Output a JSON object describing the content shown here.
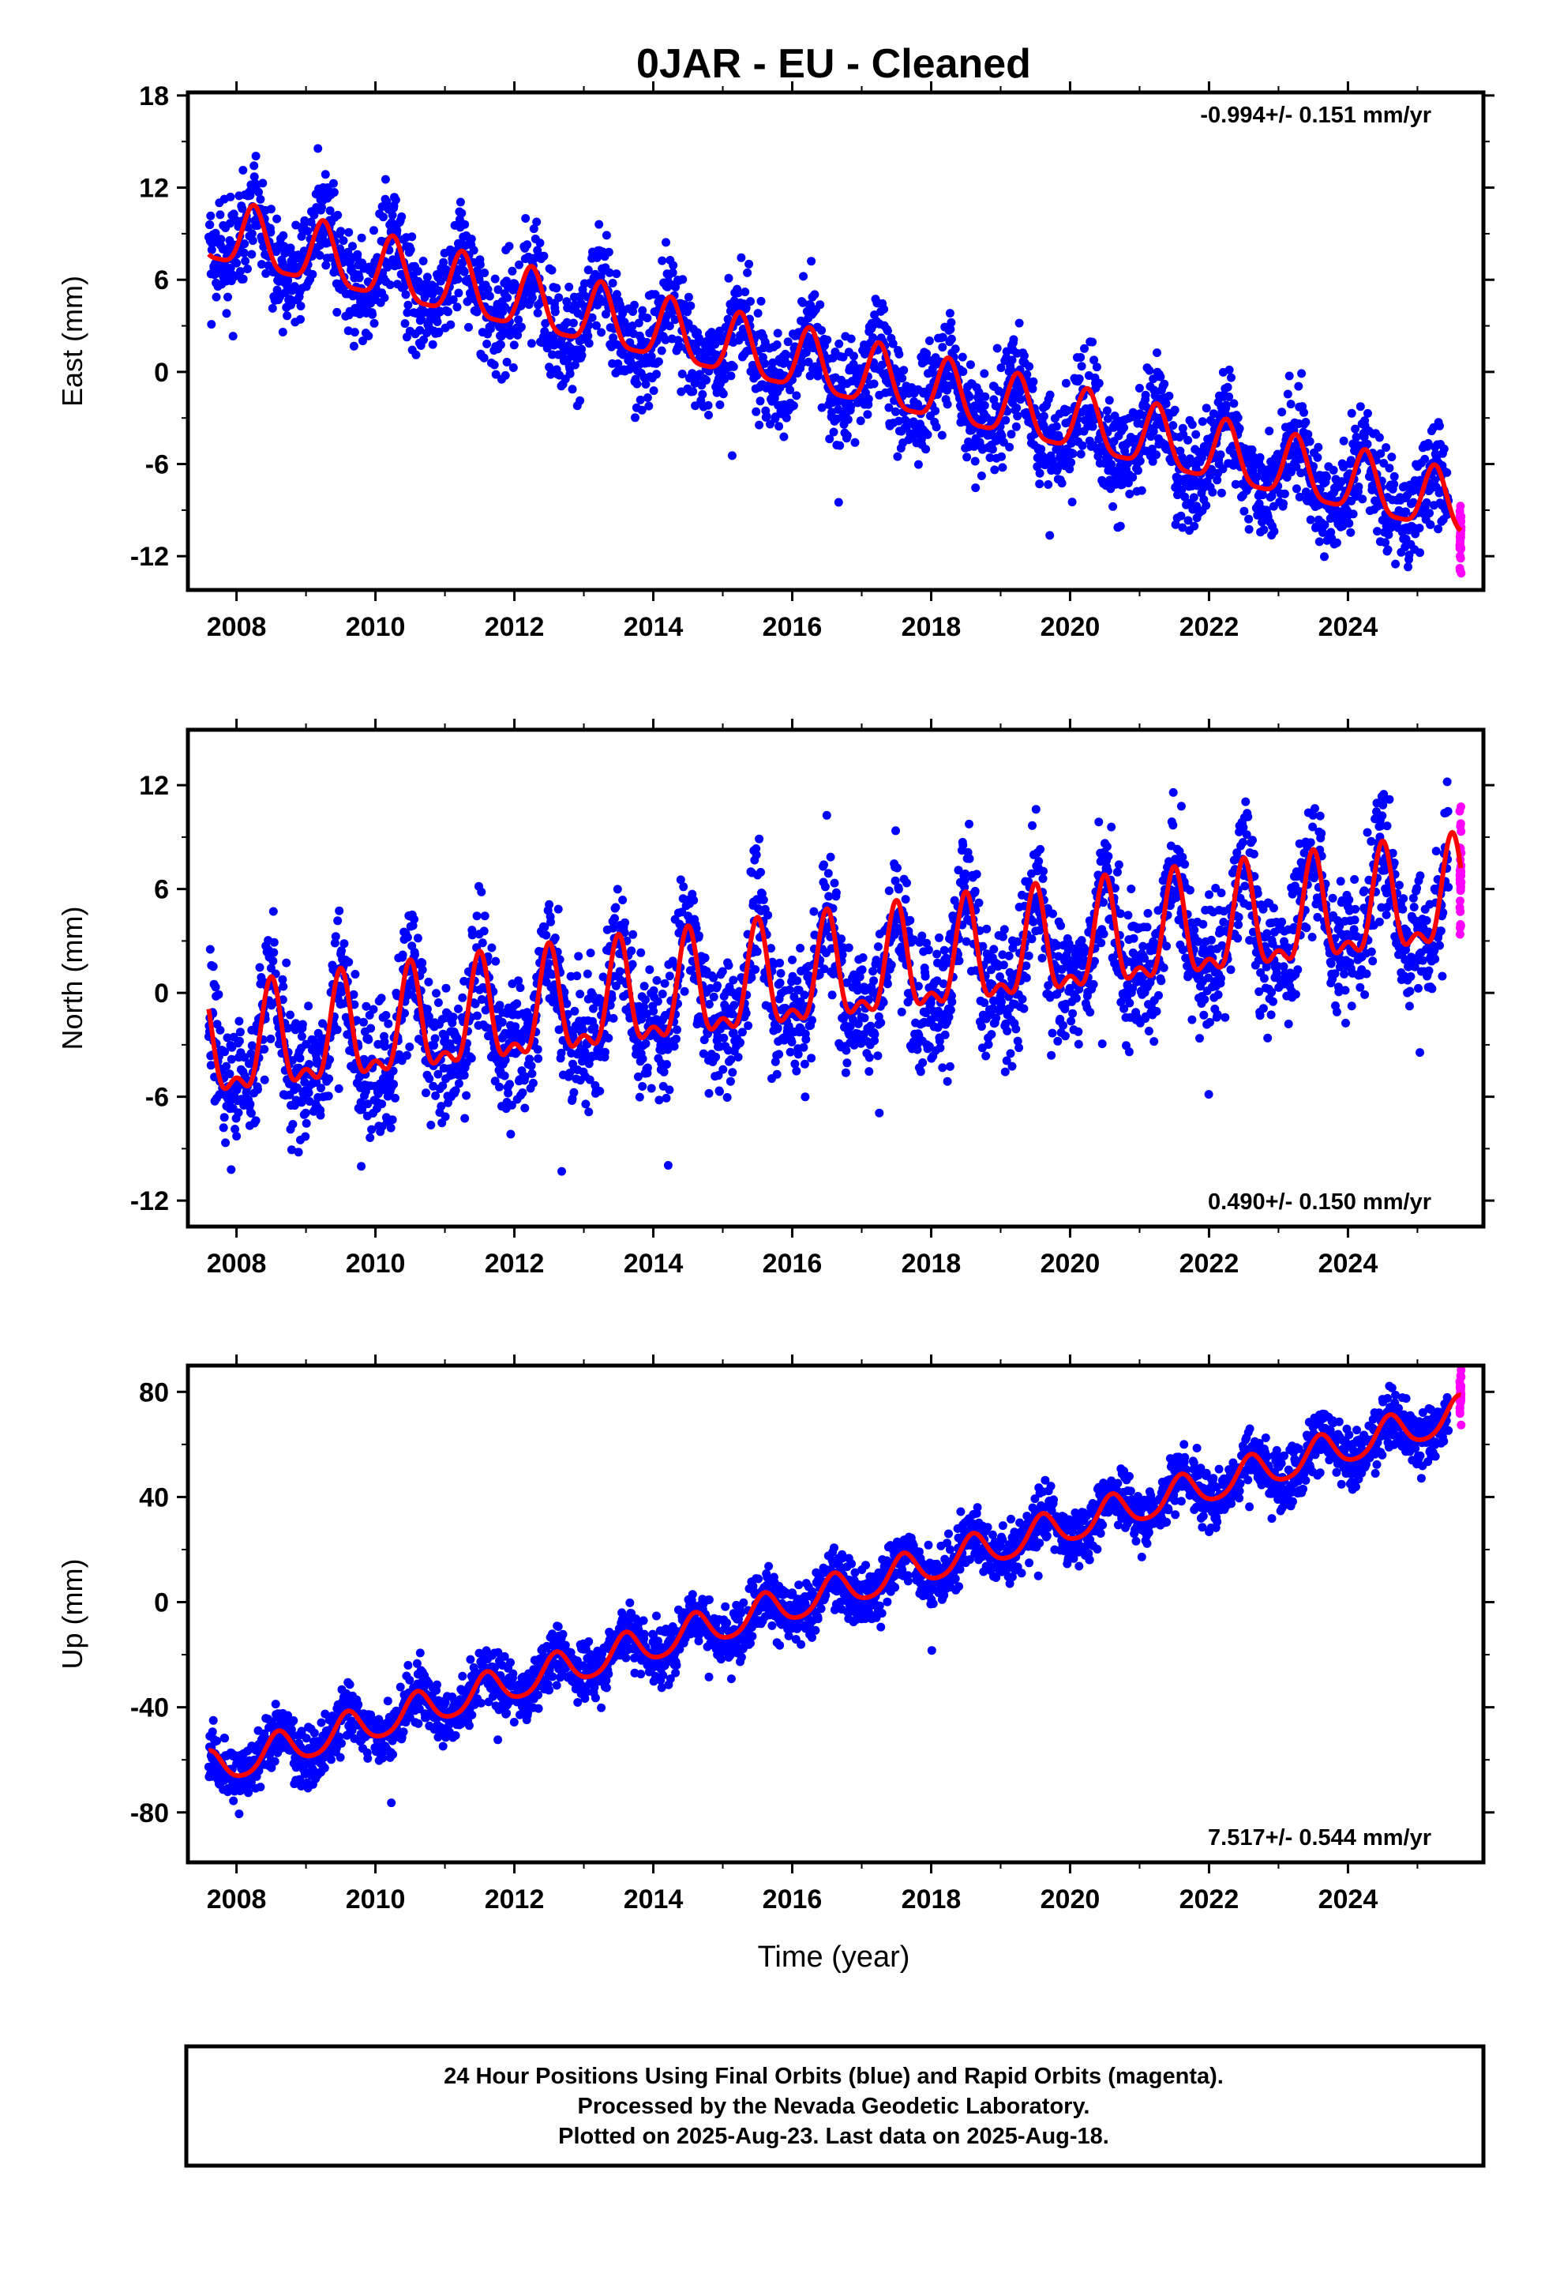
{
  "title": "0JAR  - EU - Cleaned",
  "xlabel": "Time (year)",
  "caption": [
    "24 Hour Positions Using Final Orbits (blue) and Rapid Orbits (magenta).",
    "Processed by the Nevada Geodetic Laboratory.",
    "Plotted on 2025-Aug-23. Last data on 2025-Aug-18."
  ],
  "colors": {
    "final_orbits": "#0000ff",
    "rapid_orbits": "#ff00ff",
    "model_fit": "#ff0000"
  },
  "chart_data": [
    {
      "type": "scatter",
      "panel": "east",
      "ylabel": "East (mm)",
      "rate": "-0.994+/- 0.151 mm/yr",
      "rate_position": "top-right",
      "xlim": [
        2007.3,
        2025.95
      ],
      "ylim": [
        -14.2,
        18.2
      ],
      "xticks": [
        "2008",
        "2010",
        "2012",
        "2014",
        "2016",
        "2018",
        "2020",
        "2022",
        "2024"
      ],
      "yticks": [
        "18",
        "12",
        "6",
        "0",
        "-6",
        "-12"
      ],
      "data_start": 2007.6,
      "data_end": 2025.63,
      "rapid_start": 2025.45,
      "model": {
        "ref_year": 2007.6,
        "offset": 9.0,
        "rate": -0.994,
        "annual_amp": 2.0,
        "annual_peak": 0.25,
        "semi_amp": 0.5
      },
      "scatter_sigma": 1.7,
      "series": [
        {
          "name": "Final Orbits",
          "color": "#0000ff"
        },
        {
          "name": "Rapid Orbits",
          "color": "#ff00ff"
        },
        {
          "name": "Model",
          "color": "#ff0000"
        }
      ]
    },
    {
      "type": "scatter",
      "panel": "north",
      "ylabel": "North (mm)",
      "rate": "0.490+/- 0.150 mm/yr",
      "rate_position": "bottom-right",
      "xlim": [
        2007.3,
        2025.95
      ],
      "ylim": [
        -13.5,
        15.2
      ],
      "xticks": [
        "2008",
        "2010",
        "2012",
        "2014",
        "2016",
        "2018",
        "2020",
        "2022",
        "2024"
      ],
      "yticks": [
        "12",
        "6",
        "0",
        "-6",
        "-12"
      ],
      "data_start": 2007.6,
      "data_end": 2025.63,
      "rapid_start": 2025.45,
      "model": {
        "ref_year": 2007.6,
        "offset": -3.6,
        "rate": 0.49,
        "annual_amp": 2.8,
        "annual_peak": 0.5,
        "semi_amp": 1.3
      },
      "scatter_sigma": 1.9,
      "series": [
        {
          "name": "Final Orbits",
          "color": "#0000ff"
        },
        {
          "name": "Rapid Orbits",
          "color": "#ff00ff"
        },
        {
          "name": "Model",
          "color": "#ff0000"
        }
      ]
    },
    {
      "type": "scatter",
      "panel": "up",
      "ylabel": "Up (mm)",
      "rate": "7.517+/- 0.544 mm/yr",
      "rate_position": "bottom-right",
      "xlim": [
        2007.3,
        2025.95
      ],
      "ylim": [
        -99,
        90
      ],
      "xticks": [
        "2008",
        "2010",
        "2012",
        "2014",
        "2016",
        "2018",
        "2020",
        "2022",
        "2024"
      ],
      "yticks": [
        "80",
        "40",
        "0",
        "-40",
        "-80"
      ],
      "data_start": 2007.6,
      "data_end": 2025.63,
      "rapid_start": 2025.45,
      "model": {
        "ref_year": 2007.6,
        "offset": -64.0,
        "rate": 7.517,
        "annual_amp": 6.5,
        "annual_peak": 0.6,
        "semi_amp": 1.0
      },
      "scatter_sigma": 5.5,
      "series": [
        {
          "name": "Final Orbits",
          "color": "#0000ff"
        },
        {
          "name": "Rapid Orbits",
          "color": "#ff00ff"
        },
        {
          "name": "Model",
          "color": "#ff0000"
        }
      ]
    }
  ]
}
